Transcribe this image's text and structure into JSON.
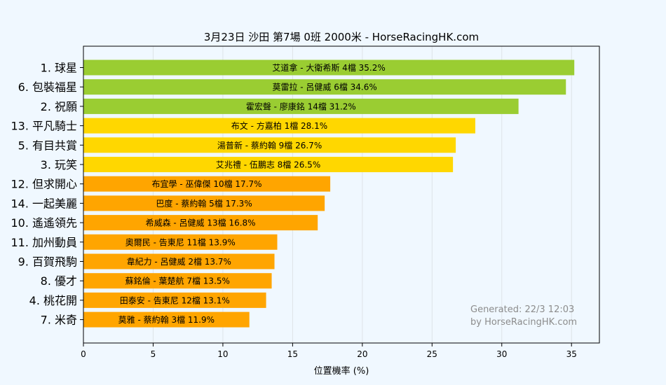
{
  "chart_data": {
    "type": "bar",
    "orientation": "horizontal",
    "title": "3月23日  沙田  第7場  0班  2000米 - HorseRacingHK.com",
    "xlabel": "位置機率 (%)",
    "xlim": [
      0,
      37
    ],
    "xticks": [
      0,
      5,
      10,
      15,
      20,
      25,
      30,
      35
    ],
    "grid": "vertical",
    "colors": {
      "green": "#9acd32",
      "yellow": "#ffd700",
      "orange": "#ffa500"
    },
    "bars": [
      {
        "horse": "1. 球星",
        "label": "艾道拿 - 大衛希斯 4檔  35.2%",
        "value": 35.2,
        "color": "green"
      },
      {
        "horse": "6. 包裝福星",
        "label": "莫雷拉 - 呂健威 6檔  34.6%",
        "value": 34.6,
        "color": "green"
      },
      {
        "horse": "2. 祝願",
        "label": "霍宏聲 - 廖康銘 14檔  31.2%",
        "value": 31.2,
        "color": "green"
      },
      {
        "horse": "13. 平凡騎士",
        "label": "布文 - 方嘉柏 1檔  28.1%",
        "value": 28.1,
        "color": "yellow"
      },
      {
        "horse": "5. 有目共賞",
        "label": "湯普新 - 蔡約翰 9檔  26.7%",
        "value": 26.7,
        "color": "yellow"
      },
      {
        "horse": "3. 玩笑",
        "label": "艾兆禮 - 伍鵬志 8檔  26.5%",
        "value": 26.5,
        "color": "yellow"
      },
      {
        "horse": "12. 但求開心",
        "label": "布宜學 - 巫偉傑 10檔  17.7%",
        "value": 17.7,
        "color": "orange"
      },
      {
        "horse": "14. 一起美麗",
        "label": "巴度 - 蔡約翰 5檔  17.3%",
        "value": 17.3,
        "color": "orange"
      },
      {
        "horse": "10. 遙遙領先",
        "label": "希威森 - 呂健威 13檔  16.8%",
        "value": 16.8,
        "color": "orange"
      },
      {
        "horse": "11. 加州動員",
        "label": "奧爾民 - 告東尼 11檔  13.9%",
        "value": 13.9,
        "color": "orange"
      },
      {
        "horse": "9. 百賀飛駒",
        "label": "韋紀力 - 呂健威 2檔  13.7%",
        "value": 13.7,
        "color": "orange"
      },
      {
        "horse": "8. 優才",
        "label": "蘇銘倫 - 葉楚航 7檔  13.5%",
        "value": 13.5,
        "color": "orange"
      },
      {
        "horse": "4. 桃花開",
        "label": "田泰安 - 告東尼 12檔  13.1%",
        "value": 13.1,
        "color": "orange"
      },
      {
        "horse": "7. 米奇",
        "label": "莫雅 - 蔡約翰 3檔  11.9%",
        "value": 11.9,
        "color": "orange"
      }
    ],
    "watermark": [
      "Generated: 22/3 12:03",
      "by HorseRacingHK.com"
    ]
  }
}
